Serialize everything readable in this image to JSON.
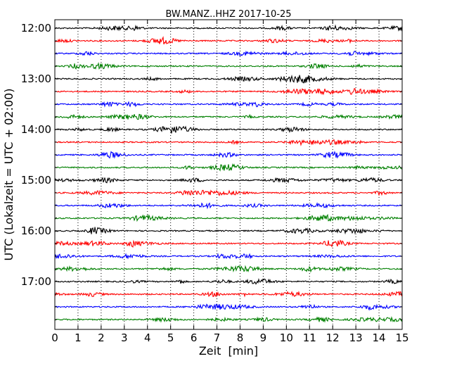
{
  "chart_data": {
    "type": "line",
    "title": "BW.MANZ..HHZ 2017-10-25",
    "xlabel": "Zeit  [min]",
    "ylabel": "UTC (Lokalzeit = UTC + 02:00)",
    "xlim": [
      0,
      15
    ],
    "x_ticks": [
      "0",
      "1",
      "2",
      "3",
      "4",
      "5",
      "6",
      "7",
      "8",
      "9",
      "10",
      "11",
      "12",
      "13",
      "14",
      "15"
    ],
    "y_ticks": [
      "12:00",
      "13:00",
      "14:00",
      "15:00",
      "16:00",
      "17:00"
    ],
    "grid": "vertical dotted",
    "trace_interval_minutes": 15,
    "series_colors": [
      "#000000",
      "#ff0000",
      "#0000ff",
      "#008000"
    ],
    "traces": [
      {
        "start_utc": "12:00"
      },
      {
        "start_utc": "12:15"
      },
      {
        "start_utc": "12:30"
      },
      {
        "start_utc": "12:45"
      },
      {
        "start_utc": "13:00"
      },
      {
        "start_utc": "13:15"
      },
      {
        "start_utc": "13:30"
      },
      {
        "start_utc": "13:45"
      },
      {
        "start_utc": "14:00"
      },
      {
        "start_utc": "14:15"
      },
      {
        "start_utc": "14:30"
      },
      {
        "start_utc": "14:45"
      },
      {
        "start_utc": "15:00"
      },
      {
        "start_utc": "15:15"
      },
      {
        "start_utc": "15:30"
      },
      {
        "start_utc": "15:45"
      },
      {
        "start_utc": "16:00"
      },
      {
        "start_utc": "16:15"
      },
      {
        "start_utc": "16:30"
      },
      {
        "start_utc": "16:45"
      },
      {
        "start_utc": "17:00"
      },
      {
        "start_utc": "17:15"
      },
      {
        "start_utc": "17:30"
      },
      {
        "start_utc": "17:45"
      }
    ]
  }
}
